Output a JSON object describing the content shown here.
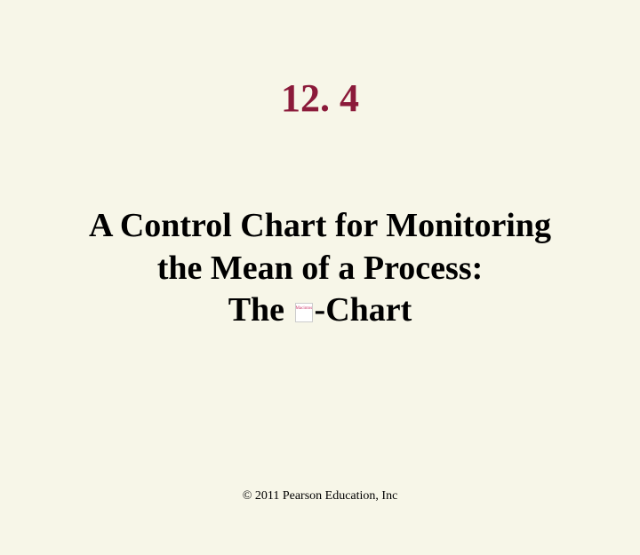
{
  "slide": {
    "section_number": "12. 4",
    "title_line1": "A Control Chart for Monitoring",
    "title_line2": "the Mean of a Process:",
    "title_line3_prefix": "The ",
    "title_line3_suffix": "-Chart",
    "broken_image_text": "Macintosh PICT image format is not supported",
    "copyright": "© 2011 Pearson Education, Inc"
  },
  "styling": {
    "background_color": "#f7f6e8",
    "section_number_color": "#8b1a3a",
    "title_color": "#000000",
    "section_number_fontsize": 44,
    "title_fontsize": 38,
    "copyright_fontsize": 14,
    "font_family": "Times New Roman"
  }
}
